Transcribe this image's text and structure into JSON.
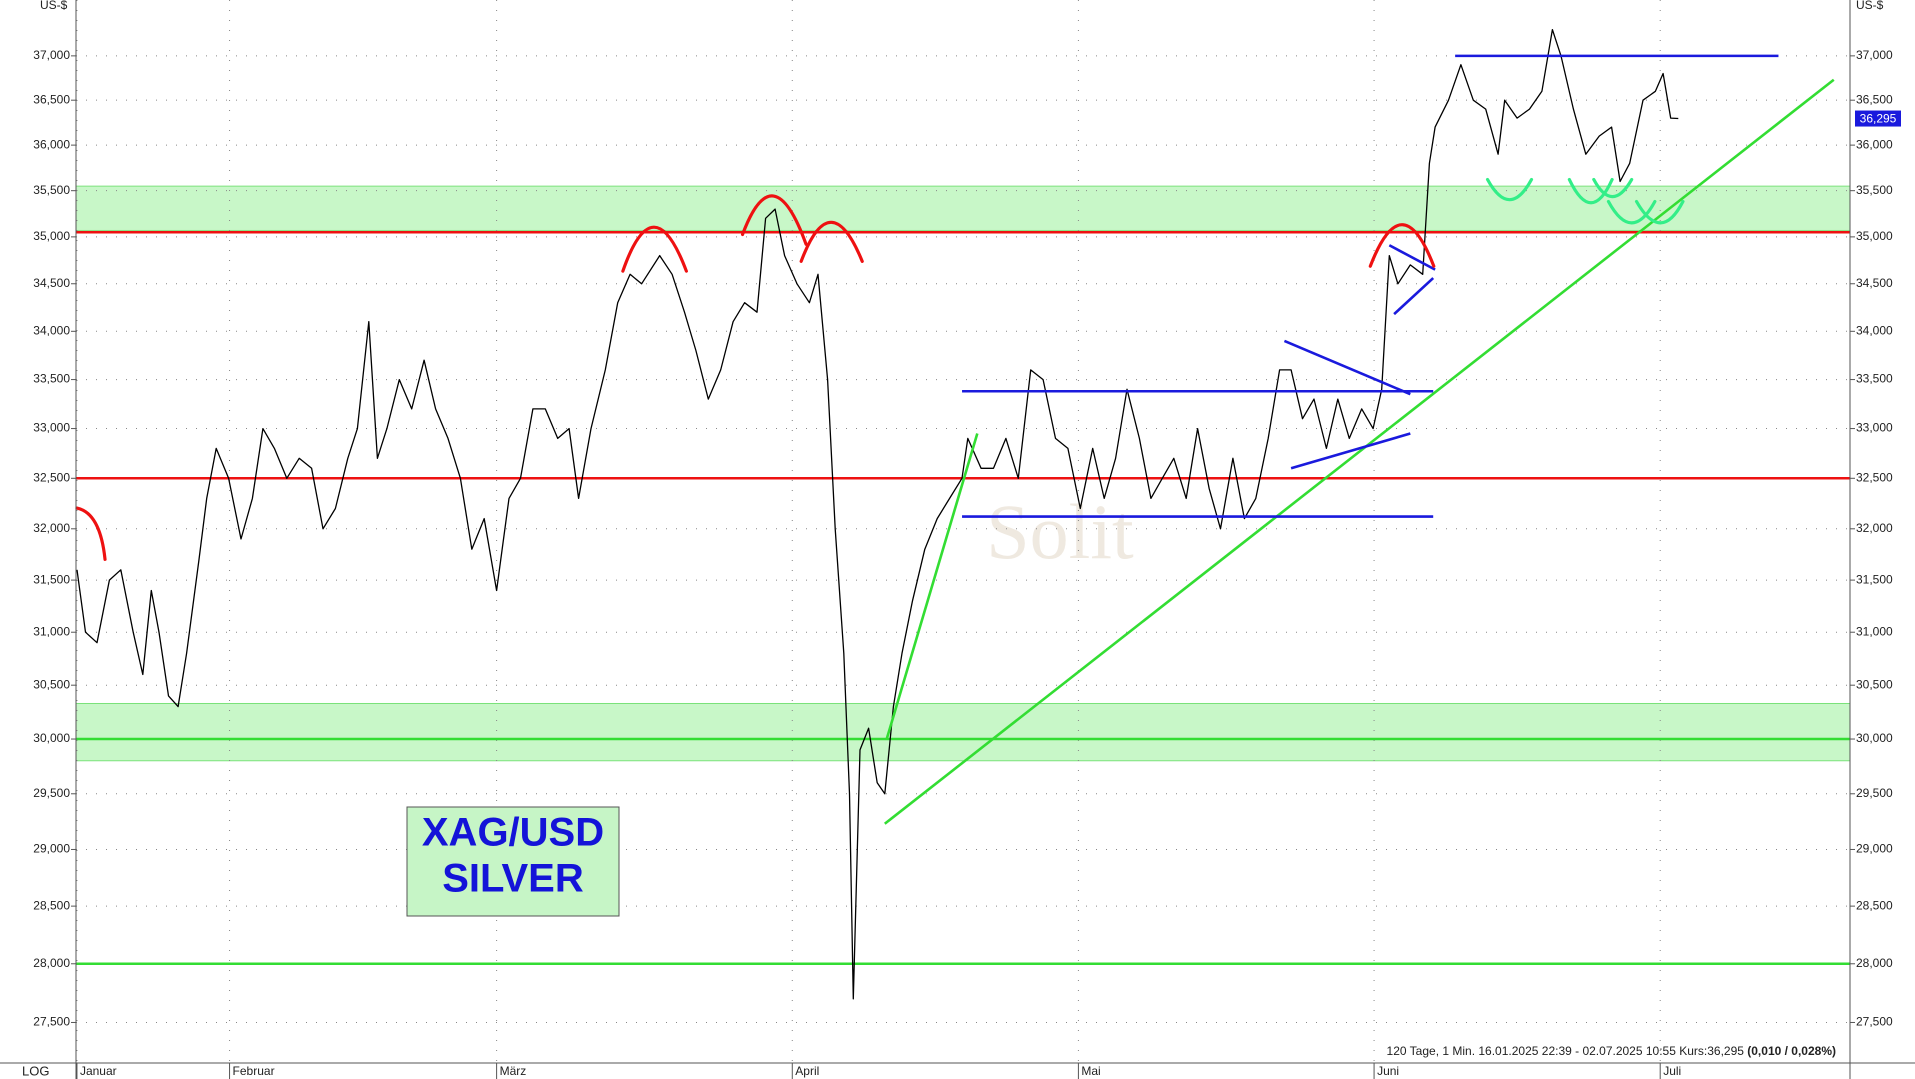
{
  "chart_data": {
    "type": "line",
    "y_unit": "US-$",
    "log_label": "LOG",
    "log_scale": true,
    "title_lines": [
      "XAG/USD",
      "SILVER"
    ],
    "watermark": "Solit",
    "footnote": "120 Tage, 1 Min. 16.01.2025 22:39 - 02.07.2025 10:55  Kurs:36,295 ",
    "footnote_bold": "(0,010 / 0,028%)",
    "last_label": "36,295",
    "xlim": [
      15.9,
      201.9
    ],
    "xticks": [
      {
        "value": 16,
        "label": "Januar"
      },
      {
        "value": 32,
        "label": "Februar"
      },
      {
        "value": 60,
        "label": "März"
      },
      {
        "value": 91,
        "label": "April"
      },
      {
        "value": 121,
        "label": "Mai"
      },
      {
        "value": 152,
        "label": "Juni"
      },
      {
        "value": 182,
        "label": "Juli"
      }
    ],
    "ylim": [
      27.16,
      37.64
    ],
    "yticks": [
      {
        "value": 27.5,
        "label": "27,500"
      },
      {
        "value": 28,
        "label": "28,000"
      },
      {
        "value": 28.5,
        "label": "28,500"
      },
      {
        "value": 29,
        "label": "29,000"
      },
      {
        "value": 29.5,
        "label": "29,500"
      },
      {
        "value": 30,
        "label": "30,000"
      },
      {
        "value": 30.5,
        "label": "30,500"
      },
      {
        "value": 31,
        "label": "31,000"
      },
      {
        "value": 31.5,
        "label": "31,500"
      },
      {
        "value": 32,
        "label": "32,000"
      },
      {
        "value": 32.5,
        "label": "32,500"
      },
      {
        "value": 33,
        "label": "33,000"
      },
      {
        "value": 33.5,
        "label": "33,500"
      },
      {
        "value": 34,
        "label": "34,000"
      },
      {
        "value": 34.5,
        "label": "34,500"
      },
      {
        "value": 35,
        "label": "35,000"
      },
      {
        "value": 35.5,
        "label": "35,500"
      },
      {
        "value": 36,
        "label": "36,000"
      },
      {
        "value": 36.5,
        "label": "36,500"
      },
      {
        "value": 37,
        "label": "37,000"
      }
    ],
    "grid": true,
    "zones": [
      {
        "range": [
          35.07,
          35.55
        ],
        "color": "#c8f7c8"
      },
      {
        "range": [
          29.8,
          30.33
        ],
        "color": "#c8f7c8"
      }
    ],
    "levels": [
      {
        "value": 35.05,
        "color": "#ee1111"
      },
      {
        "value": 32.5,
        "color": "#ee1111"
      },
      {
        "value": 30.0,
        "color": "#33dd33"
      },
      {
        "value": 28.0,
        "color": "#33dd33"
      }
    ],
    "trendlines": [
      {
        "color": "#33dd33",
        "x": [
          100.7,
          200.2
        ],
        "y": [
          29.23,
          36.73
        ]
      },
      {
        "color": "#33dd33",
        "x": [
          100.9,
          110.4
        ],
        "y": [
          30.0,
          32.95
        ]
      },
      {
        "color": "#1a1add",
        "x": [
          160.5,
          194.4
        ],
        "y": [
          37.0,
          37.0
        ]
      },
      {
        "color": "#1a1add",
        "x": [
          108.8,
          158.2
        ],
        "y": [
          33.38,
          33.38
        ]
      },
      {
        "color": "#1a1add",
        "x": [
          108.8,
          158.2
        ],
        "y": [
          32.12,
          32.12
        ]
      },
      {
        "color": "#1a1add",
        "x": [
          142.6,
          155.8
        ],
        "y": [
          33.9,
          33.35
        ]
      },
      {
        "color": "#1a1add",
        "x": [
          143.3,
          155.8
        ],
        "y": [
          32.6,
          32.95
        ]
      },
      {
        "color": "#1a1add",
        "x": [
          153.6,
          158.4
        ],
        "y": [
          34.91,
          34.65
        ]
      },
      {
        "color": "#1a1add",
        "x": [
          154.1,
          158.2
        ],
        "y": [
          34.18,
          34.56
        ]
      }
    ],
    "x": [
      16.0,
      16.9,
      18.1,
      19.4,
      20.6,
      21.9,
      22.9,
      23.8,
      24.6,
      25.6,
      26.6,
      27.5,
      28.8,
      29.6,
      30.6,
      31.9,
      33.2,
      34.4,
      35.5,
      36.7,
      38.0,
      39.3,
      40.6,
      41.8,
      43.1,
      44.4,
      45.4,
      46.6,
      47.5,
      48.5,
      49.8,
      51.1,
      52.4,
      53.6,
      54.9,
      56.2,
      57.4,
      58.7,
      60.0,
      61.3,
      62.5,
      63.8,
      65.1,
      66.4,
      67.6,
      68.6,
      69.9,
      71.4,
      72.7,
      74.0,
      75.2,
      77.1,
      78.4,
      79.7,
      80.9,
      82.2,
      83.5,
      84.8,
      86.0,
      87.3,
      88.2,
      89.2,
      90.2,
      91.5,
      92.8,
      93.7,
      94.7,
      95.5,
      96.4,
      97.0,
      97.4,
      98.1,
      99.0,
      99.9,
      100.7,
      101.6,
      102.5,
      103.6,
      104.9,
      106.2,
      107.5,
      108.8,
      109.4,
      110.8,
      112.1,
      113.4,
      114.7,
      116.0,
      117.3,
      118.6,
      119.9,
      121.2,
      122.5,
      123.7,
      124.9,
      126.1,
      127.4,
      128.6,
      129.8,
      131.0,
      132.3,
      133.5,
      134.7,
      135.9,
      137.2,
      138.4,
      139.6,
      140.9,
      142.1,
      143.3,
      144.5,
      145.7,
      147.0,
      148.2,
      149.4,
      150.7,
      151.9,
      152.8,
      153.6,
      154.5,
      155.8,
      157.1,
      157.8,
      158.4,
      159.8,
      161.1,
      162.4,
      163.7,
      165.0,
      165.7,
      167.0,
      168.3,
      169.6,
      170.7,
      171.6,
      172.9,
      174.2,
      175.6,
      176.9,
      177.8,
      178.8,
      180.2,
      181.5,
      182.3,
      183.1,
      183.9
    ],
    "series": [
      {
        "color": "#000000",
        "values": [
          31.6,
          31.0,
          30.9,
          31.5,
          31.6,
          31.0,
          30.6,
          31.4,
          31.0,
          30.4,
          30.3,
          30.8,
          31.7,
          32.3,
          32.8,
          32.5,
          31.9,
          32.3,
          33.0,
          32.8,
          32.5,
          32.7,
          32.6,
          32.0,
          32.2,
          32.7,
          33.0,
          34.1,
          32.7,
          33.0,
          33.5,
          33.2,
          33.7,
          33.2,
          32.9,
          32.5,
          31.8,
          32.1,
          31.4,
          32.3,
          32.5,
          33.2,
          33.2,
          32.9,
          33.0,
          32.3,
          33.0,
          33.6,
          34.3,
          34.6,
          34.5,
          34.8,
          34.6,
          34.2,
          33.8,
          33.3,
          33.6,
          34.1,
          34.3,
          34.2,
          35.2,
          35.3,
          34.8,
          34.5,
          34.3,
          34.6,
          33.5,
          32.0,
          30.8,
          29.5,
          27.7,
          29.9,
          30.1,
          29.6,
          29.5,
          30.3,
          30.8,
          31.3,
          31.8,
          32.1,
          32.3,
          32.5,
          32.9,
          32.6,
          32.6,
          32.9,
          32.5,
          33.6,
          33.5,
          32.9,
          32.8,
          32.2,
          32.8,
          32.3,
          32.7,
          33.4,
          32.9,
          32.3,
          32.5,
          32.7,
          32.3,
          33.0,
          32.4,
          32.0,
          32.7,
          32.1,
          32.3,
          32.9,
          33.6,
          33.6,
          33.1,
          33.3,
          32.8,
          33.3,
          32.9,
          33.2,
          33.0,
          33.4,
          34.8,
          34.5,
          34.7,
          34.6,
          35.8,
          36.2,
          36.5,
          36.9,
          36.5,
          36.4,
          35.9,
          36.5,
          36.3,
          36.4,
          36.6,
          37.3,
          37.0,
          36.4,
          35.9,
          36.1,
          36.2,
          35.6,
          35.8,
          36.5,
          36.6,
          36.8,
          36.3,
          36.295
        ]
      }
    ]
  }
}
